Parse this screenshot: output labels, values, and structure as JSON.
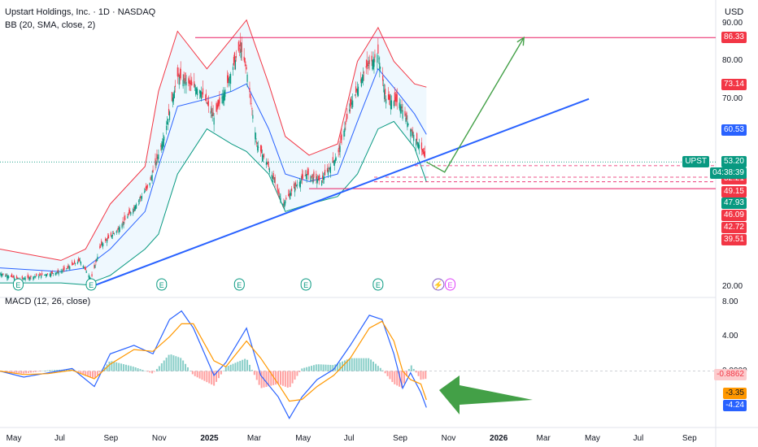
{
  "header": {
    "title": "Upstart Holdings, Inc. · 1D · NASDAQ",
    "bb_label": "BB (20, SMA, close, 2)",
    "currency": "USD",
    "macd_label": "MACD (12, 26, close)"
  },
  "price_axis": {
    "ticks": [
      "90.00",
      "80.00",
      "70.00",
      "20.00"
    ]
  },
  "price_tags": [
    {
      "text": "86.33",
      "color": "#f23645"
    },
    {
      "text": "73.14",
      "color": "#f23645"
    },
    {
      "text": "60.53",
      "color": "#2962ff"
    },
    {
      "text": "52.21",
      "color": "#f23645"
    },
    {
      "text": "49.15",
      "color": "#f23645"
    },
    {
      "text": "47.93",
      "color": "#089981"
    },
    {
      "text": "46.09",
      "color": "#f23645"
    },
    {
      "text": "42.72",
      "color": "#f23645"
    },
    {
      "text": "39.51",
      "color": "#f23645"
    }
  ],
  "last_price": {
    "symbol": "UPST",
    "price": "53.20",
    "countdown": "04:38:39",
    "color": "#089981"
  },
  "macd_axis": {
    "ticks": [
      "8.00",
      "4.00",
      "0.0000"
    ]
  },
  "macd_tags": [
    {
      "text": "-0.8862",
      "color": "#fccbcd",
      "text_color": "#f23645"
    },
    {
      "text": "-3.35",
      "color": "#ff9800",
      "text_color": "#131722"
    },
    {
      "text": "-4.24",
      "color": "#2962ff",
      "text_color": "#ffffff"
    }
  ],
  "time_axis": [
    {
      "label": "May",
      "bold": false
    },
    {
      "label": "Jul",
      "bold": false
    },
    {
      "label": "Sep",
      "bold": false
    },
    {
      "label": "Nov",
      "bold": false
    },
    {
      "label": "2025",
      "bold": true
    },
    {
      "label": "Mar",
      "bold": false
    },
    {
      "label": "May",
      "bold": false
    },
    {
      "label": "Jul",
      "bold": false
    },
    {
      "label": "Sep",
      "bold": false
    },
    {
      "label": "Nov",
      "bold": false
    },
    {
      "label": "2026",
      "bold": true
    },
    {
      "label": "Mar",
      "bold": false
    },
    {
      "label": "May",
      "bold": false
    },
    {
      "label": "Jul",
      "bold": false
    },
    {
      "label": "Sep",
      "bold": false
    }
  ],
  "earnings_markers": [
    "E",
    "E",
    "E",
    "E",
    "E",
    "E",
    "E"
  ],
  "chart_data": {
    "type": "candlestick",
    "price_path": [
      [
        "2024-04-15",
        23.5
      ],
      [
        "2024-05-10",
        22
      ],
      [
        "2024-06-05",
        23
      ],
      [
        "2024-07-01",
        24
      ],
      [
        "2024-07-25",
        27
      ],
      [
        "2024-08-08",
        22
      ],
      [
        "2024-08-20",
        31
      ],
      [
        "2024-09-10",
        35
      ],
      [
        "2024-10-01",
        41
      ],
      [
        "2024-10-20",
        47
      ],
      [
        "2024-11-08",
        60
      ],
      [
        "2024-11-25",
        76
      ],
      [
        "2024-12-10",
        74
      ],
      [
        "2024-12-25",
        72
      ],
      [
        "2025-01-10",
        65
      ],
      [
        "2025-01-25",
        73
      ],
      [
        "2025-02-12",
        84
      ],
      [
        "2025-02-20",
        78
      ],
      [
        "2025-03-05",
        58
      ],
      [
        "2025-03-20",
        52
      ],
      [
        "2025-04-07",
        42
      ],
      [
        "2025-04-20",
        46
      ],
      [
        "2025-05-07",
        50
      ],
      [
        "2025-05-25",
        48
      ],
      [
        "2025-06-15",
        55
      ],
      [
        "2025-07-01",
        68
      ],
      [
        "2025-07-20",
        78
      ],
      [
        "2025-08-05",
        82
      ],
      [
        "2025-08-15",
        70
      ],
      [
        "2025-09-01",
        69
      ],
      [
        "2025-09-15",
        62
      ],
      [
        "2025-09-28",
        57
      ],
      [
        "2025-10-05",
        53.2
      ]
    ],
    "bb_upper": [
      [
        "2024-04-15",
        30
      ],
      [
        "2024-07-01",
        27
      ],
      [
        "2024-08-01",
        30
      ],
      [
        "2024-09-01",
        42
      ],
      [
        "2024-10-15",
        52
      ],
      [
        "2024-11-01",
        72
      ],
      [
        "2024-11-25",
        88
      ],
      [
        "2025-01-01",
        78
      ],
      [
        "2025-02-01",
        86
      ],
      [
        "2025-02-20",
        91
      ],
      [
        "2025-03-20",
        74
      ],
      [
        "2025-04-10",
        60
      ],
      [
        "2025-05-10",
        55
      ],
      [
        "2025-06-15",
        58
      ],
      [
        "2025-07-10",
        80
      ],
      [
        "2025-08-05",
        89
      ],
      [
        "2025-08-25",
        80
      ],
      [
        "2025-09-20",
        74
      ],
      [
        "2025-10-05",
        73.14
      ]
    ],
    "bb_middle": [
      [
        "2024-04-15",
        25
      ],
      [
        "2024-07-01",
        24
      ],
      [
        "2024-08-01",
        25
      ],
      [
        "2024-09-01",
        30
      ],
      [
        "2024-10-15",
        40
      ],
      [
        "2024-11-01",
        52
      ],
      [
        "2024-11-25",
        68
      ],
      [
        "2025-01-01",
        70
      ],
      [
        "2025-02-01",
        72
      ],
      [
        "2025-02-20",
        74
      ],
      [
        "2025-03-20",
        62
      ],
      [
        "2025-04-10",
        50
      ],
      [
        "2025-05-10",
        48
      ],
      [
        "2025-06-15",
        50
      ],
      [
        "2025-07-10",
        64
      ],
      [
        "2025-08-05",
        78
      ],
      [
        "2025-08-25",
        73
      ],
      [
        "2025-09-20",
        66
      ],
      [
        "2025-10-05",
        60.53
      ]
    ],
    "bb_lower": [
      [
        "2024-04-15",
        21
      ],
      [
        "2024-07-01",
        21
      ],
      [
        "2024-08-01",
        20.5
      ],
      [
        "2024-09-01",
        23
      ],
      [
        "2024-10-15",
        30
      ],
      [
        "2024-11-01",
        34
      ],
      [
        "2024-11-25",
        50
      ],
      [
        "2025-01-01",
        62
      ],
      [
        "2025-02-01",
        58
      ],
      [
        "2025-02-20",
        56
      ],
      [
        "2025-03-20",
        50
      ],
      [
        "2025-04-10",
        40
      ],
      [
        "2025-05-10",
        42
      ],
      [
        "2025-06-15",
        44
      ],
      [
        "2025-07-10",
        50
      ],
      [
        "2025-08-05",
        62
      ],
      [
        "2025-08-25",
        64
      ],
      [
        "2025-09-20",
        57
      ],
      [
        "2025-10-05",
        47.93
      ]
    ],
    "resistance": 86.33,
    "support_levels": [
      52.21,
      49.15,
      47.93
    ],
    "support_zone": 46.09,
    "trendline": [
      [
        "2024-08-08",
        20
      ],
      [
        "2026-04-28",
        70
      ]
    ],
    "projection": [
      [
        "2025-10-05",
        53.2
      ],
      [
        "2025-10-28",
        50.5
      ],
      [
        "2026-02-05",
        86.33
      ]
    ],
    "macd": [
      [
        "2024-04-15",
        0
      ],
      [
        "2024-05-15",
        -0.7
      ],
      [
        "2024-06-15",
        -0.2
      ],
      [
        "2024-07-15",
        0.3
      ],
      [
        "2024-08-12",
        -1.8
      ],
      [
        "2024-09-01",
        2
      ],
      [
        "2024-10-01",
        3
      ],
      [
        "2024-10-25",
        2
      ],
      [
        "2024-11-15",
        6
      ],
      [
        "2024-11-30",
        7
      ],
      [
        "2024-12-15",
        5
      ],
      [
        "2025-01-10",
        -0.5
      ],
      [
        "2025-01-25",
        1
      ],
      [
        "2025-02-20",
        5
      ],
      [
        "2025-03-10",
        -0.5
      ],
      [
        "2025-04-01",
        -3
      ],
      [
        "2025-04-15",
        -5.5
      ],
      [
        "2025-05-01",
        -3
      ],
      [
        "2025-05-20",
        -1
      ],
      [
        "2025-06-10",
        0.2
      ],
      [
        "2025-07-01",
        3
      ],
      [
        "2025-07-25",
        6.5
      ],
      [
        "2025-08-10",
        6
      ],
      [
        "2025-08-25",
        2
      ],
      [
        "2025-09-05",
        -2
      ],
      [
        "2025-09-15",
        -0.2
      ],
      [
        "2025-09-28",
        -2.5
      ],
      [
        "2025-10-05",
        -4.24
      ]
    ],
    "signal": [
      [
        "2024-04-15",
        0
      ],
      [
        "2024-05-15",
        -0.4
      ],
      [
        "2024-06-15",
        -0.3
      ],
      [
        "2024-07-15",
        0.1
      ],
      [
        "2024-08-12",
        -0.9
      ],
      [
        "2024-09-01",
        0.8
      ],
      [
        "2024-10-01",
        2.5
      ],
      [
        "2024-10-25",
        2.3
      ],
      [
        "2024-11-15",
        4
      ],
      [
        "2024-11-30",
        5.5
      ],
      [
        "2024-12-15",
        5.5
      ],
      [
        "2025-01-10",
        1.2
      ],
      [
        "2025-01-25",
        0.5
      ],
      [
        "2025-02-20",
        3.5
      ],
      [
        "2025-03-10",
        1.5
      ],
      [
        "2025-04-01",
        -1.5
      ],
      [
        "2025-04-15",
        -3.5
      ],
      [
        "2025-05-01",
        -3.3
      ],
      [
        "2025-05-20",
        -1.8
      ],
      [
        "2025-06-10",
        -0.5
      ],
      [
        "2025-07-01",
        1.5
      ],
      [
        "2025-07-25",
        5
      ],
      [
        "2025-08-10",
        5.8
      ],
      [
        "2025-08-25",
        3.5
      ],
      [
        "2025-09-05",
        0
      ],
      [
        "2025-09-15",
        -1
      ],
      [
        "2025-09-28",
        -1.5
      ],
      [
        "2025-10-05",
        -3.35
      ]
    ],
    "macd_range": [
      -6,
      8
    ],
    "price_range": [
      18,
      92
    ]
  }
}
